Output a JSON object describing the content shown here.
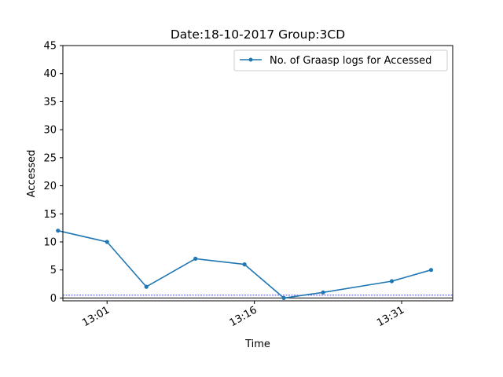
{
  "chart_data": {
    "type": "line",
    "title": "Date:18-10-2017  Group:3CD",
    "xlabel": "Time",
    "ylabel": "Accessed",
    "x_tick_labels": [
      "13:01",
      "13:16",
      "13:31"
    ],
    "x_tick_minutes": [
      781,
      796,
      811
    ],
    "xlim_minutes": [
      776.5,
      816.2
    ],
    "ylim": [
      -0.5,
      45
    ],
    "y_ticks": [
      0,
      5,
      10,
      15,
      20,
      25,
      30,
      35,
      40,
      45
    ],
    "grid": false,
    "legend_position": "top-right",
    "reference_line": {
      "y": 0.5,
      "color": "#0000ff",
      "style": "dashed"
    },
    "series": [
      {
        "name": "No. of Graasp logs for Accessed",
        "color": "#1f77b4",
        "x": [
          "12:56",
          "13:01",
          "13:05",
          "13:10",
          "13:15",
          "13:19",
          "13:23",
          "13:30",
          "13:34"
        ],
        "y": [
          12,
          10,
          2,
          7,
          6,
          0,
          1,
          3,
          5
        ]
      }
    ]
  }
}
